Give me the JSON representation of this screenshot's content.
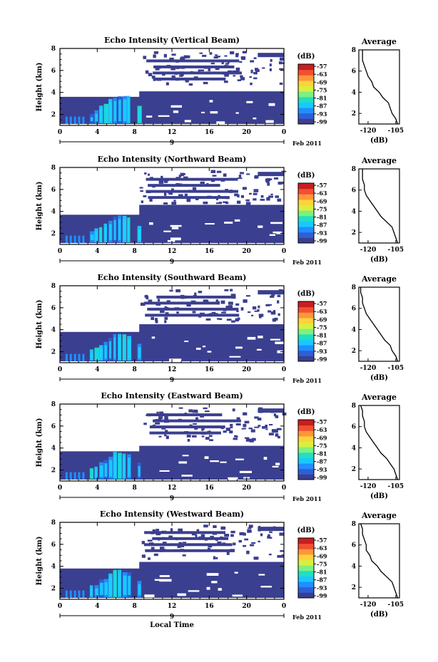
{
  "figure": {
    "x_axis_label": "Local Time",
    "date_label": "Feb 2011",
    "date_tick": "9",
    "time_ticks": [
      "0",
      "4",
      "8",
      "12",
      "16",
      "20",
      "0"
    ],
    "height_ticks": [
      "2",
      "4",
      "6",
      "8"
    ],
    "y_label": "Height (km)",
    "colorbar_unit": "(dB)",
    "colorbar_ticks": [
      "-57",
      "-63",
      "-69",
      "-75",
      "-81",
      "-87",
      "-93",
      "-99"
    ],
    "colorbar_colors": [
      "#3b3f8f",
      "#2f5fd6",
      "#1f8fff",
      "#19c8ff",
      "#1fe0c0",
      "#7ff07f",
      "#d6f03f",
      "#ffd23a",
      "#ff963a",
      "#f25030",
      "#c81e1e"
    ],
    "fill_color": "#3b3f8f",
    "average_title": "Average",
    "average_xticks": [
      "-120",
      "-105"
    ],
    "average_xlabel": "(dB)"
  },
  "chart_data": [
    {
      "type": "heatmap",
      "title": "Echo Intensity (Vertical Beam)",
      "x_range_hours": [
        0,
        24
      ],
      "y_range_km": [
        1,
        8
      ],
      "profile": {
        "type": "line",
        "xlim": [
          -125,
          -103
        ],
        "heights": [
          1,
          1.5,
          2,
          2.5,
          3,
          3.5,
          4,
          4.5,
          5,
          5.5,
          6,
          6.5,
          7,
          7.5,
          8
        ],
        "values": [
          -104,
          -105,
          -107,
          -108,
          -109,
          -112,
          -114,
          -117,
          -118,
          -120,
          -121,
          -122,
          -123,
          -123,
          -123
        ]
      }
    },
    {
      "type": "heatmap",
      "title": "Echo Intensity (Northward Beam)",
      "x_range_hours": [
        0,
        24
      ],
      "y_range_km": [
        1,
        8
      ],
      "profile": {
        "type": "line",
        "xlim": [
          -125,
          -103
        ],
        "heights": [
          1,
          1.5,
          2,
          2.5,
          3,
          3.5,
          4,
          4.5,
          5,
          5.5,
          6,
          6.5,
          7,
          7.5,
          8
        ],
        "values": [
          -104,
          -105,
          -106,
          -107,
          -110,
          -113,
          -115,
          -117,
          -119,
          -121,
          -122,
          -122,
          -123,
          -123,
          -123
        ]
      }
    },
    {
      "type": "heatmap",
      "title": "Echo Intensity (Southward Beam)",
      "x_range_hours": [
        0,
        24
      ],
      "y_range_km": [
        1,
        8
      ],
      "profile": {
        "type": "line",
        "xlim": [
          -125,
          -103
        ],
        "heights": [
          1,
          1.5,
          2,
          2.5,
          3,
          3.5,
          4,
          4.5,
          5,
          5.5,
          6,
          6.5,
          7,
          7.5,
          8
        ],
        "values": [
          -104,
          -105,
          -107,
          -108,
          -111,
          -113,
          -115,
          -117,
          -119,
          -121,
          -122,
          -123,
          -123,
          -124,
          -124
        ]
      }
    },
    {
      "type": "heatmap",
      "title": "Echo Intensity (Eastward Beam)",
      "x_range_hours": [
        0,
        24
      ],
      "y_range_km": [
        1,
        8
      ],
      "profile": {
        "type": "line",
        "xlim": [
          -125,
          -103
        ],
        "heights": [
          1,
          1.5,
          2,
          2.5,
          3,
          3.5,
          4,
          4.5,
          5,
          5.5,
          6,
          6.5,
          7,
          7.5,
          8
        ],
        "values": [
          -104,
          -105,
          -106,
          -108,
          -110,
          -113,
          -115,
          -117,
          -119,
          -121,
          -122,
          -122,
          -123,
          -123,
          -124
        ]
      }
    },
    {
      "type": "heatmap",
      "title": "Echo Intensity (Westward Beam)",
      "x_range_hours": [
        0,
        24
      ],
      "y_range_km": [
        1,
        8
      ],
      "profile": {
        "type": "line",
        "xlim": [
          -125,
          -103
        ],
        "heights": [
          1,
          1.5,
          2,
          2.5,
          3,
          3.5,
          4,
          4.5,
          5,
          5.5,
          6,
          6.5,
          7,
          7.5,
          8
        ],
        "values": [
          -104,
          -105,
          -106,
          -107,
          -110,
          -113,
          -115,
          -118,
          -119,
          -121,
          -121,
          -122,
          -123,
          -123,
          -124
        ]
      }
    }
  ]
}
